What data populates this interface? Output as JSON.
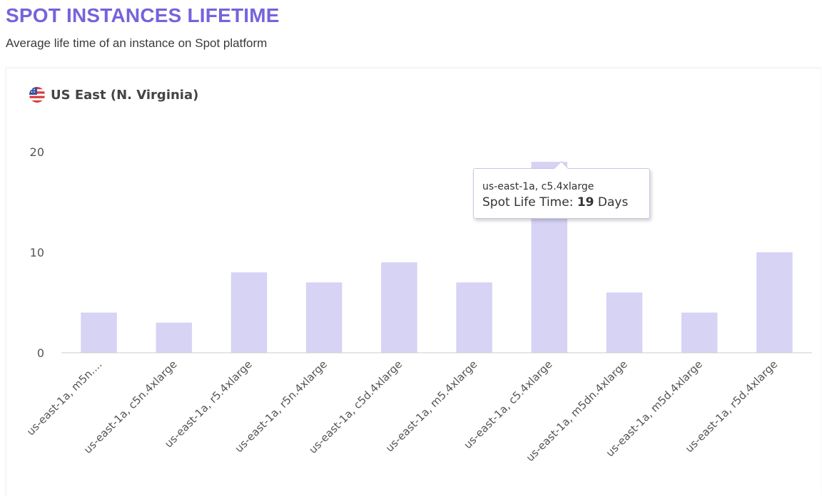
{
  "header": {
    "title": "SPOT INSTANCES LIFETIME",
    "subtitle": "Average life time of an instance on Spot platform"
  },
  "card": {
    "region": "US East (N. Virginia)",
    "region_icon": "us-flag-icon"
  },
  "colors": {
    "accent": "#7464dc",
    "bar": "#d6d3f5",
    "axis": "#cccccc"
  },
  "tooltip": {
    "category": "us-east-1a, c5.4xlarge",
    "label": "Spot Life Time:",
    "value": "19",
    "unit": "Days"
  },
  "chart_data": {
    "type": "bar",
    "title": "",
    "xlabel": "",
    "ylabel": "",
    "ylim": [
      0,
      20
    ],
    "yticks": [
      0,
      10,
      20
    ],
    "grid": false,
    "categories": [
      "us-east-1a, m5n....",
      "us-east-1a, c5n.4xlarge",
      "us-east-1a, r5.4xlarge",
      "us-east-1a, r5n.4xlarge",
      "us-east-1a, c5d.4xlarge",
      "us-east-1a, m5.4xlarge",
      "us-east-1a, c5.4xlarge",
      "us-east-1a, m5dn.4xlarge",
      "us-east-1a, m5d.4xlarge",
      "us-east-1a, r5d.4xlarge"
    ],
    "values": [
      4,
      3,
      8,
      7,
      9,
      7,
      19,
      6,
      4,
      10
    ]
  }
}
